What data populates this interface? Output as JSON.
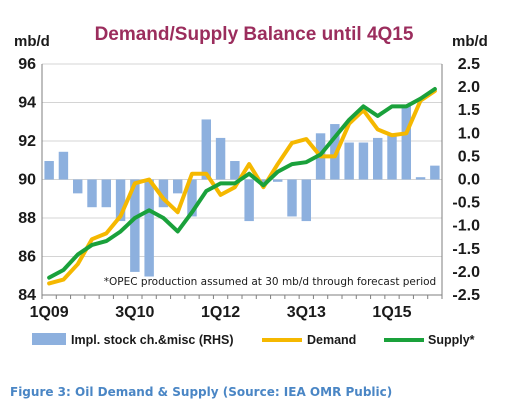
{
  "chart_data": {
    "type": "bar+line",
    "title": "Demand/Supply Balance until 4Q15",
    "left_unit": "mb/d",
    "right_unit": "mb/d",
    "left_axis": {
      "min": 84,
      "max": 96,
      "ticks": [
        84,
        86,
        88,
        90,
        92,
        94,
        96
      ]
    },
    "right_axis": {
      "min": -2.5,
      "max": 2.5,
      "ticks": [
        "-2.5",
        "-2.0",
        "-1.5",
        "-1.0",
        "-0.5",
        "0.0",
        "0.5",
        "1.0",
        "1.5",
        "2.0",
        "2.5"
      ]
    },
    "grid": "horizontal",
    "x_tick_labels": [
      "1Q09",
      "3Q10",
      "1Q12",
      "3Q13",
      "1Q15"
    ],
    "x_tick_positions": [
      0,
      6,
      12,
      18,
      24
    ],
    "quarters": 28,
    "series": [
      {
        "name": "Impl. stock ch.&misc (RHS)",
        "kind": "bar",
        "axis": "right",
        "color": "#8db0de",
        "values": [
          0.4,
          0.6,
          -0.3,
          -0.6,
          -0.6,
          -0.9,
          -2.0,
          -2.1,
          -0.6,
          -0.3,
          -0.8,
          1.3,
          0.9,
          0.4,
          -0.9,
          -0.1,
          -0.05,
          -0.8,
          -0.9,
          1.0,
          1.2,
          0.8,
          0.8,
          0.9,
          1.0,
          1.6,
          0.05,
          0.3
        ]
      },
      {
        "name": "Demand",
        "kind": "line",
        "axis": "left",
        "color": "#f5b800",
        "values": [
          84.6,
          84.8,
          85.6,
          86.9,
          87.2,
          88.1,
          89.8,
          90.0,
          89.0,
          88.3,
          90.3,
          90.3,
          89.2,
          89.6,
          90.8,
          89.6,
          90.8,
          91.9,
          92.1,
          91.2,
          91.2,
          92.9,
          93.6,
          92.6,
          92.3,
          92.4,
          94.1,
          94.6
        ]
      },
      {
        "name": "Supply*",
        "kind": "line",
        "axis": "left",
        "color": "#1aa13b",
        "values": [
          84.9,
          85.3,
          86.1,
          86.6,
          86.8,
          87.3,
          88.0,
          88.4,
          88.0,
          87.3,
          88.3,
          89.4,
          89.8,
          89.8,
          90.3,
          89.7,
          90.4,
          90.8,
          90.9,
          91.3,
          92.2,
          93.1,
          93.8,
          93.3,
          93.8,
          93.8,
          94.2,
          94.7
        ]
      }
    ],
    "annotation": "*OPEC production assumed at 30 mb/d through forecast period",
    "legend_position": "bottom",
    "caption": "Figure 3: Oil Demand & Supply (Source: IEA OMR Public)"
  }
}
